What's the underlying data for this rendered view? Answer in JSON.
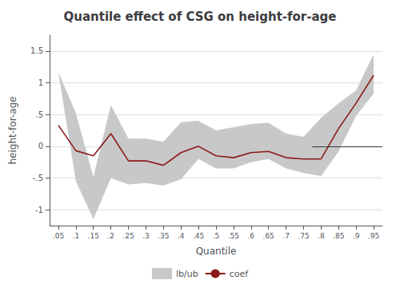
{
  "chart_data": {
    "type": "line",
    "title": "Quantile effect of CSG on height-for-age",
    "xlabel": "Quantile",
    "ylabel": "height-for-age",
    "x": [
      0.05,
      0.1,
      0.15,
      0.2,
      0.25,
      0.3,
      0.35,
      0.4,
      0.45,
      0.5,
      0.55,
      0.6,
      0.65,
      0.7,
      0.75,
      0.8,
      0.85,
      0.9,
      0.95
    ],
    "series": [
      {
        "name": "lb/ub",
        "type": "band",
        "color": "#c8c8c8",
        "upper": [
          1.17,
          0.52,
          -0.48,
          0.65,
          0.12,
          0.12,
          0.07,
          0.38,
          0.4,
          0.25,
          0.3,
          0.35,
          0.37,
          0.2,
          0.15,
          0.45,
          0.68,
          0.88,
          1.45
        ],
        "lower": [
          1.17,
          -0.55,
          -1.15,
          -0.5,
          -0.6,
          -0.58,
          -0.62,
          -0.52,
          -0.2,
          -0.35,
          -0.35,
          -0.25,
          -0.2,
          -0.35,
          -0.42,
          -0.47,
          -0.08,
          0.48,
          0.83
        ]
      },
      {
        "name": "coef",
        "type": "line",
        "color": "#8b1a1a",
        "values": [
          0.33,
          -0.07,
          -0.15,
          0.2,
          -0.23,
          -0.23,
          -0.3,
          -0.1,
          0.0,
          -0.15,
          -0.18,
          -0.1,
          -0.08,
          -0.18,
          -0.2,
          -0.2,
          0.28,
          0.68,
          1.12
        ]
      }
    ],
    "reference_line": {
      "y": 0.0,
      "x_start": 0.775,
      "color": "#333333"
    },
    "xlim": [
      0.025,
      0.975
    ],
    "xticks": [
      {
        "value": 0.05,
        "label": ".05"
      },
      {
        "value": 0.1,
        "label": ".1"
      },
      {
        "value": 0.15,
        "label": ".15"
      },
      {
        "value": 0.2,
        "label": ".2"
      },
      {
        "value": 0.25,
        "label": ".25"
      },
      {
        "value": 0.3,
        "label": ".3"
      },
      {
        "value": 0.35,
        "label": ".35"
      },
      {
        "value": 0.4,
        "label": ".4"
      },
      {
        "value": 0.45,
        "label": ".45"
      },
      {
        "value": 0.5,
        "label": ".5"
      },
      {
        "value": 0.55,
        "label": ".55"
      },
      {
        "value": 0.6,
        "label": ".6"
      },
      {
        "value": 0.65,
        "label": ".65"
      },
      {
        "value": 0.7,
        "label": ".7"
      },
      {
        "value": 0.75,
        "label": ".75"
      },
      {
        "value": 0.8,
        "label": ".8"
      },
      {
        "value": 0.85,
        "label": ".85"
      },
      {
        "value": 0.9,
        "label": ".9"
      },
      {
        "value": 0.95,
        "label": ".95"
      }
    ],
    "ylim": [
      -1.25,
      1.75
    ],
    "yticks": [
      -1,
      {
        "value": -0.5,
        "label": "-.5"
      },
      0,
      {
        "value": 0.5,
        "label": ".5"
      },
      1,
      1.5
    ],
    "grid": "y",
    "legend": "bottom"
  }
}
